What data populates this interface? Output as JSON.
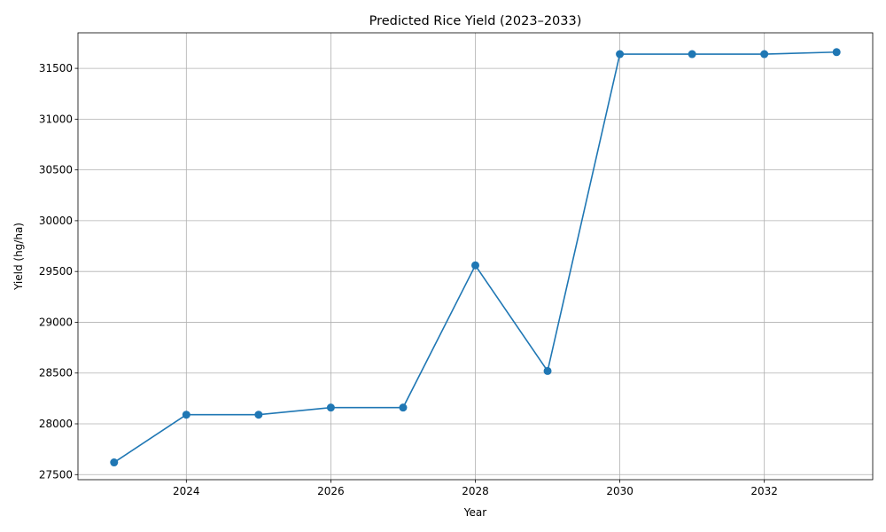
{
  "chart_data": {
    "type": "line",
    "title": "Predicted Rice Yield (2023–2033)",
    "xlabel": "Year",
    "ylabel": "Yield (hg/ha)",
    "x": [
      2023,
      2024,
      2025,
      2026,
      2027,
      2028,
      2029,
      2030,
      2031,
      2032,
      2033
    ],
    "series": [
      {
        "values": [
          27620,
          28090,
          28090,
          28160,
          28160,
          29560,
          28520,
          31640,
          31640,
          31640,
          31660
        ],
        "color": "#1f77b4",
        "marker": "circle"
      }
    ],
    "xlim": [
      2022.5,
      2033.5
    ],
    "ylim": [
      27450,
      31850
    ],
    "xticks": [
      2024,
      2026,
      2028,
      2030,
      2032
    ],
    "yticks": [
      27500,
      28000,
      28500,
      29000,
      29500,
      30000,
      30500,
      31000,
      31500
    ],
    "grid": true,
    "legend": "none"
  }
}
